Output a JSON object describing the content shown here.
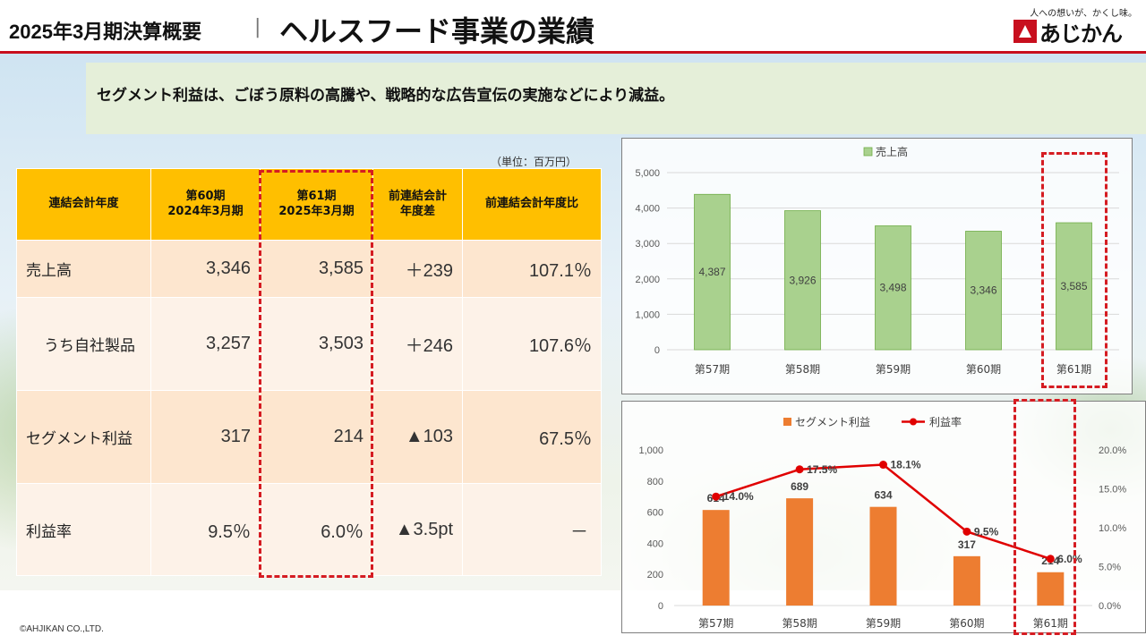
{
  "header": {
    "title_left": "2025年3月期決算概要",
    "separator": "|",
    "title_main": "ヘルスフード事業の業績",
    "logo_tagline": "人への想いが、かくし味。",
    "logo_text": "あじかん",
    "accent_color": "#c80f1e"
  },
  "summary": {
    "text": "セグメント利益は、ごぼう原料の高騰や、戦略的な広告宣伝の実施などにより減益。"
  },
  "table": {
    "unit": "（単位：百万円）",
    "headers": [
      "連結会計年度",
      "第60期\n2024年3月期",
      "第61期\n2025年3月期",
      "前連結会計\n年度差",
      "前連結会計年度比"
    ],
    "rows": [
      {
        "label": "売上高",
        "p60": "3,346",
        "p61": "3,585",
        "diff": "＋239",
        "ratio": "107.1％"
      },
      {
        "label": "うち自社製品",
        "p60": "3,257",
        "p61": "3,503",
        "diff": "＋246",
        "ratio": "107.6％"
      },
      {
        "label": "セグメント利益",
        "p60": "317",
        "p61": "214",
        "diff": "▲103",
        "ratio": "67.5％"
      },
      {
        "label": "利益率",
        "p60": "9.5％",
        "p61": "6.0％",
        "diff": "▲3.5pt",
        "ratio": "－"
      }
    ]
  },
  "chart_data": [
    {
      "type": "bar",
      "categories": [
        "第57期",
        "第58期",
        "第59期",
        "第60期",
        "第61期"
      ],
      "series": [
        {
          "name": "売上高",
          "values": [
            4387,
            3926,
            3498,
            3346,
            3585
          ],
          "color": "#a9d18e"
        }
      ],
      "data_labels": [
        "4,387",
        "3,926",
        "3,498",
        "3,346",
        "3,585"
      ],
      "y_ticks": [
        "0",
        "1,000",
        "2,000",
        "3,000",
        "4,000",
        "5,000"
      ],
      "ylim": [
        0,
        5000
      ],
      "legend_position": "top",
      "grid": true
    },
    {
      "type": "bar",
      "categories": [
        "第57期",
        "第58期",
        "第59期",
        "第60期",
        "第61期"
      ],
      "series": [
        {
          "name": "セグメント利益",
          "values": [
            614,
            689,
            634,
            317,
            214
          ],
          "color": "#ed7d31"
        },
        {
          "name": "利益率",
          "values": [
            14.0,
            17.5,
            18.1,
            9.5,
            6.0
          ],
          "color": "#e00000",
          "type": "line",
          "axis": "right"
        }
      ],
      "bar_labels": [
        "614",
        "689",
        "634",
        "317",
        "214"
      ],
      "line_labels": [
        "14.0%",
        "17.5%",
        "18.1%",
        "9.5%",
        "6.0%"
      ],
      "y_ticks": [
        "0",
        "200",
        "400",
        "600",
        "800",
        "1,000"
      ],
      "y2_ticks": [
        "0.0%",
        "5.0%",
        "10.0%",
        "15.0%",
        "20.0%"
      ],
      "ylim": [
        0,
        1000
      ],
      "y2lim": [
        0,
        20
      ],
      "legend_position": "top",
      "grid": false
    }
  ],
  "footer": {
    "copyright": "©AHJIKAN CO.,LTD."
  }
}
